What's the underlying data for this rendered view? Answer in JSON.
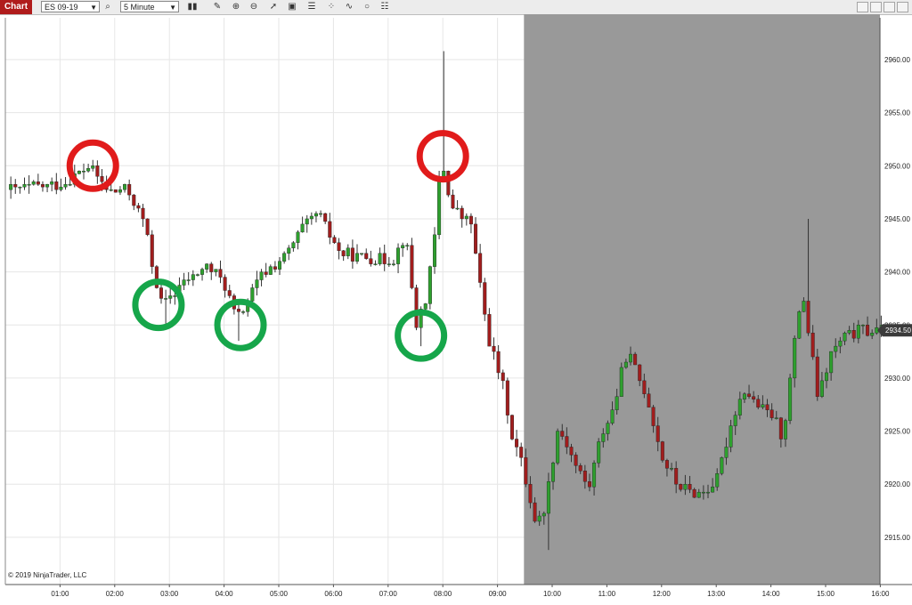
{
  "toolbar": {
    "chart_tab": "Chart",
    "instrument": "ES 09-19",
    "interval": "5 Minute",
    "icons": [
      "bar-type-icon",
      "search-icon",
      "bar-type-icon",
      "pencil-icon",
      "zoom-in-icon",
      "zoom-out-icon",
      "pointer-icon",
      "properties-icon",
      "layout-icon",
      "strategies-icon",
      "indicators-icon",
      "refresh-icon",
      "settings-icon"
    ]
  },
  "copyright": "© 2019 NinjaTrader, LLC",
  "price_marker": "2934.50",
  "colors": {
    "up": "#2ea02e",
    "down": "#a11d1d",
    "shade": "#999999",
    "circle_red": "#e11b1b",
    "circle_green": "#16a64a"
  },
  "annotations": {
    "red_circles": [
      {
        "time": 1.6,
        "price": 2950.0
      },
      {
        "time": 8.0,
        "price": 2950.9
      }
    ],
    "green_circles": [
      {
        "time": 2.8,
        "price": 2936.9
      },
      {
        "time": 4.3,
        "price": 2935.0
      },
      {
        "time": 7.6,
        "price": 2934.0
      }
    ]
  },
  "chart_data": {
    "type": "candlestick",
    "symbol": "ES 09-19",
    "interval": "5 Minute",
    "x_axis": {
      "ticks": [
        "01:00",
        "02:00",
        "03:00",
        "04:00",
        "05:00",
        "06:00",
        "07:00",
        "08:00",
        "09:00",
        "10:00",
        "11:00",
        "12:00",
        "13:00",
        "14:00",
        "15:00",
        "16:00"
      ]
    },
    "y_axis": {
      "ticks": [
        "2915.00",
        "2920.00",
        "2925.00",
        "2930.00",
        "2935.00",
        "2940.00",
        "2945.00",
        "2950.00",
        "2955.00",
        "2960.00"
      ],
      "range": [
        2913.5,
        2963.5
      ],
      "position": "right"
    },
    "shaded_region": {
      "from": "09:30",
      "to": "16:10",
      "color": "gray"
    },
    "grid": true,
    "last_price": 2934.5,
    "anchors": [
      [
        0.2,
        2947.75
      ],
      [
        0.8,
        2948.0
      ],
      [
        1.2,
        2948.5
      ],
      [
        1.6,
        2950.0
      ],
      [
        2.0,
        2947.5
      ],
      [
        2.3,
        2947.8
      ],
      [
        2.6,
        2945.0
      ],
      [
        2.8,
        2940.0
      ],
      [
        2.95,
        2936.8
      ],
      [
        3.3,
        2938.8
      ],
      [
        3.8,
        2940.5
      ],
      [
        4.1,
        2938.8
      ],
      [
        4.3,
        2935.5
      ],
      [
        4.8,
        2939.8
      ],
      [
        5.2,
        2941.5
      ],
      [
        5.5,
        2944.0
      ],
      [
        5.8,
        2945.5
      ],
      [
        6.2,
        2941.8
      ],
      [
        6.8,
        2941.2
      ],
      [
        7.2,
        2941.3
      ],
      [
        7.4,
        2943.6
      ],
      [
        7.6,
        2935.0
      ],
      [
        7.8,
        2938.0
      ],
      [
        7.95,
        2944.0
      ],
      [
        8.05,
        2951.0
      ],
      [
        8.25,
        2946.0
      ],
      [
        8.6,
        2944.5
      ],
      [
        8.8,
        2937.5
      ],
      [
        8.95,
        2933.0
      ],
      [
        9.2,
        2929.0
      ],
      [
        9.35,
        2924.5
      ],
      [
        9.55,
        2921.5
      ],
      [
        9.8,
        2916.0
      ],
      [
        9.95,
        2918.0
      ],
      [
        10.2,
        2925.5
      ],
      [
        10.5,
        2922.0
      ],
      [
        10.75,
        2919.5
      ],
      [
        11.0,
        2925.0
      ],
      [
        11.2,
        2927.0
      ],
      [
        11.45,
        2932.5
      ],
      [
        11.8,
        2928.5
      ],
      [
        12.1,
        2922.5
      ],
      [
        12.4,
        2919.8
      ],
      [
        12.8,
        2919.0
      ],
      [
        13.1,
        2920.5
      ],
      [
        13.4,
        2926.5
      ],
      [
        13.6,
        2929.0
      ],
      [
        13.9,
        2927.0
      ],
      [
        14.1,
        2926.5
      ],
      [
        14.3,
        2924.5
      ],
      [
        14.5,
        2932.5
      ],
      [
        14.65,
        2938.5
      ],
      [
        14.85,
        2931.5
      ],
      [
        14.95,
        2928.0
      ],
      [
        15.2,
        2932.5
      ],
      [
        15.45,
        2934.0
      ],
      [
        15.7,
        2934.5
      ],
      [
        16.05,
        2934.5
      ]
    ]
  }
}
